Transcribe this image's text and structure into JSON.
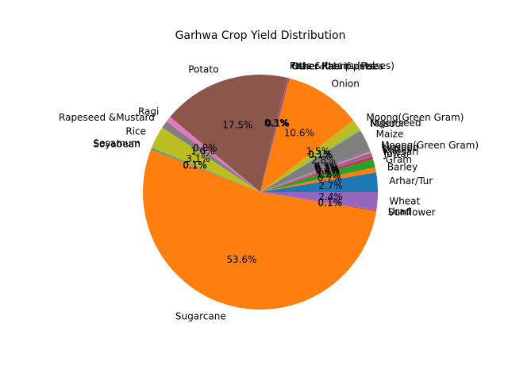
{
  "chart_data": {
    "type": "pie",
    "title": "Garhwa Crop Yield Distribution",
    "start_angle_deg": 0,
    "direction": "counterclockwise",
    "slices": [
      {
        "label": "Arhar/Tur",
        "value": 2.7,
        "pct_label": "2.7%",
        "color": "#1f77b4"
      },
      {
        "label": "Barley",
        "value": 0.7,
        "pct_label": "0.7%",
        "color": "#ff7f0e"
      },
      {
        "label": "Gram",
        "value": 1.2,
        "pct_label": "1.2%",
        "color": "#2ca02c"
      },
      {
        "label": "Jowar",
        "value": 0.3,
        "pct_label": "0.3%",
        "color": "#d62728"
      },
      {
        "label": "Khesari",
        "value": 0.3,
        "pct_label": "0.3%",
        "color": "#9467bd"
      },
      {
        "label": "Kulthi",
        "value": 0.2,
        "pct_label": "0.2%",
        "color": "#8c564b"
      },
      {
        "label": "Linseed",
        "value": 0.3,
        "pct_label": "0.3%",
        "color": "#e377c2"
      },
      {
        "label": "Moong(Green Gram)",
        "value": 0.3,
        "pct_label": "0.3%",
        "color": "#7f7f7f"
      },
      {
        "label": "Maize",
        "value": 2.8,
        "pct_label": "2.8%",
        "color": "#7f7f7f"
      },
      {
        "label": "Masoor",
        "value": 0.1,
        "pct_label": "0.1%",
        "color": "#bcbd22"
      },
      {
        "label": "Niger seed",
        "value": 0.1,
        "pct_label": "0.1%",
        "color": "#17becf"
      },
      {
        "label": "Moong(Green Gram)",
        "value": 1.5,
        "pct_label": "1.5%",
        "color": "#bcbd22"
      },
      {
        "label": "Onion",
        "value": 10.6,
        "pct_label": "10.6%",
        "color": "#ff7f0e"
      },
      {
        "label": "Other Kharif pulses",
        "value": 0.1,
        "pct_label": "0.1%",
        "color": "#d62728"
      },
      {
        "label": "Other Rabi pulses",
        "value": 0.1,
        "pct_label": "0.1%",
        "color": "#9467bd"
      },
      {
        "label": "Peas & beans (Pulses)",
        "value": 0.3,
        "pct_label": "0.3%",
        "color": "#8c564b"
      },
      {
        "label": "Potato",
        "value": 17.5,
        "pct_label": "17.5%",
        "color": "#8c564b"
      },
      {
        "label": "Ragi",
        "value": 0.8,
        "pct_label": "0.8%",
        "color": "#e377c2"
      },
      {
        "label": "Rapeseed &Mustard",
        "value": 1.0,
        "pct_label": "1.0%",
        "color": "#7f7f7f"
      },
      {
        "label": "Rice",
        "value": 3.1,
        "pct_label": "3.1%",
        "color": "#bcbd22"
      },
      {
        "label": "Sesamum",
        "value": 0.1,
        "pct_label": "0.1%",
        "color": "#17becf"
      },
      {
        "label": "Soyabean",
        "value": 0.1,
        "pct_label": "0.1%",
        "color": "#1f77b4"
      },
      {
        "label": "Sugarcane",
        "value": 53.6,
        "pct_label": "53.6%",
        "color": "#ff7f0e"
      },
      {
        "label": "Sunflower",
        "value": 0.1,
        "pct_label": "0.1%",
        "color": "#d62728"
      },
      {
        "label": "Urad",
        "value": 0.1,
        "pct_label": "0.1%",
        "color": "#9467bd"
      },
      {
        "label": "Wheat",
        "value": 2.4,
        "pct_label": "2.4%",
        "color": "#9467bd"
      }
    ]
  }
}
